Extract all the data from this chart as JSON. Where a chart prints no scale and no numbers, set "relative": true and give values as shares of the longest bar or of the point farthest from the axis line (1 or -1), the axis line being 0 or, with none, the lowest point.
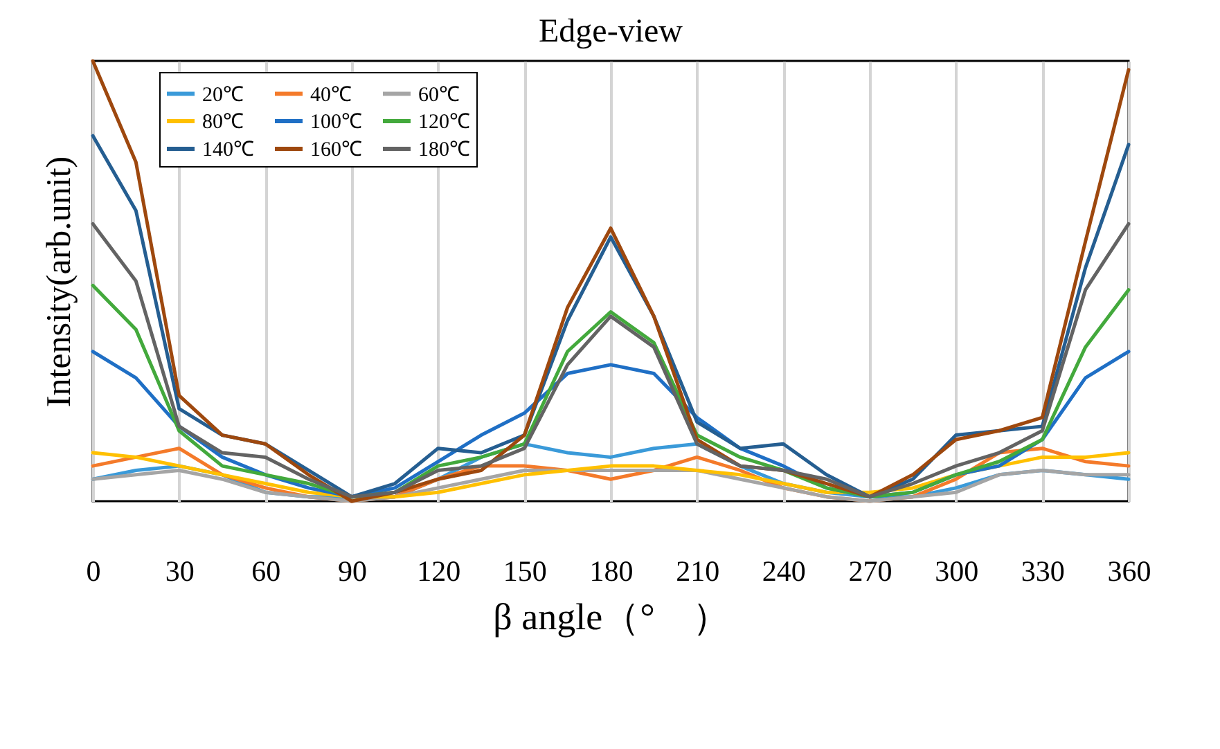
{
  "chart_data": {
    "type": "line",
    "title": "Edge-view",
    "xlabel": "β angle（°　）",
    "ylabel": "Intensity(arb.unit)",
    "relative": true,
    "grid": "x",
    "legend": "top left",
    "xlim": [
      0,
      360
    ],
    "xticks": [
      0,
      30,
      60,
      90,
      120,
      150,
      180,
      210,
      240,
      270,
      300,
      330,
      360
    ],
    "x": [
      0,
      15,
      30,
      45,
      60,
      75,
      90,
      105,
      120,
      135,
      150,
      165,
      180,
      195,
      210,
      225,
      240,
      255,
      270,
      285,
      300,
      315,
      330,
      345,
      360
    ],
    "series": [
      {
        "name": "20℃",
        "color": "#3a9ad9",
        "values": [
          0.05,
          0.07,
          0.08,
          0.06,
          0.02,
          0.01,
          0.01,
          0.01,
          0.05,
          0.1,
          0.13,
          0.11,
          0.1,
          0.12,
          0.13,
          0.08,
          0.04,
          0.02,
          0.01,
          0.01,
          0.03,
          0.06,
          0.07,
          0.06,
          0.05
        ]
      },
      {
        "name": "40℃",
        "color": "#f47a2a",
        "values": [
          0.08,
          0.1,
          0.12,
          0.06,
          0.03,
          0.01,
          0,
          0.01,
          0.05,
          0.08,
          0.08,
          0.07,
          0.05,
          0.07,
          0.1,
          0.07,
          0.03,
          0.01,
          0,
          0.01,
          0.05,
          0.11,
          0.12,
          0.09,
          0.08
        ]
      },
      {
        "name": "60℃",
        "color": "#a5a5a5",
        "values": [
          0.05,
          0.06,
          0.07,
          0.05,
          0.02,
          0.01,
          0,
          0.01,
          0.03,
          0.05,
          0.07,
          0.07,
          0.07,
          0.07,
          0.07,
          0.05,
          0.03,
          0.01,
          0,
          0.01,
          0.02,
          0.06,
          0.07,
          0.06,
          0.06
        ]
      },
      {
        "name": "80℃",
        "color": "#ffc000",
        "values": [
          0.11,
          0.1,
          0.08,
          0.06,
          0.04,
          0.02,
          0.01,
          0.01,
          0.02,
          0.04,
          0.06,
          0.07,
          0.08,
          0.08,
          0.07,
          0.06,
          0.04,
          0.02,
          0.02,
          0.03,
          0.06,
          0.08,
          0.1,
          0.1,
          0.11
        ]
      },
      {
        "name": "100℃",
        "color": "#1f6fc5",
        "values": [
          0.34,
          0.28,
          0.17,
          0.1,
          0.06,
          0.03,
          0.01,
          0.03,
          0.09,
          0.15,
          0.2,
          0.29,
          0.31,
          0.29,
          0.19,
          0.12,
          0.08,
          0.03,
          0.01,
          0.02,
          0.06,
          0.08,
          0.14,
          0.28,
          0.34
        ]
      },
      {
        "name": "120℃",
        "color": "#43a93c",
        "values": [
          0.49,
          0.39,
          0.16,
          0.08,
          0.06,
          0.04,
          0.01,
          0.02,
          0.08,
          0.1,
          0.13,
          0.34,
          0.43,
          0.36,
          0.15,
          0.1,
          0.07,
          0.03,
          0.01,
          0.02,
          0.06,
          0.09,
          0.14,
          0.35,
          0.48
        ]
      },
      {
        "name": "140℃",
        "color": "#255e91",
        "values": [
          0.83,
          0.66,
          0.21,
          0.15,
          0.13,
          0.07,
          0.01,
          0.04,
          0.12,
          0.11,
          0.15,
          0.41,
          0.6,
          0.42,
          0.18,
          0.12,
          0.13,
          0.06,
          0.01,
          0.05,
          0.15,
          0.16,
          0.17,
          0.53,
          0.81
        ]
      },
      {
        "name": "160℃",
        "color": "#9e480e",
        "values": [
          1,
          0.77,
          0.24,
          0.15,
          0.13,
          0.06,
          0,
          0.02,
          0.05,
          0.07,
          0.15,
          0.44,
          0.62,
          0.42,
          0.14,
          0.08,
          0.07,
          0.04,
          0.01,
          0.06,
          0.14,
          0.16,
          0.19,
          0.59,
          0.98
        ]
      },
      {
        "name": "180℃",
        "color": "#636363",
        "values": [
          0.63,
          0.5,
          0.17,
          0.11,
          0.1,
          0.05,
          0.01,
          0.02,
          0.07,
          0.08,
          0.12,
          0.31,
          0.42,
          0.35,
          0.13,
          0.08,
          0.07,
          0.05,
          0.01,
          0.04,
          0.08,
          0.11,
          0.16,
          0.48,
          0.63
        ]
      }
    ]
  }
}
